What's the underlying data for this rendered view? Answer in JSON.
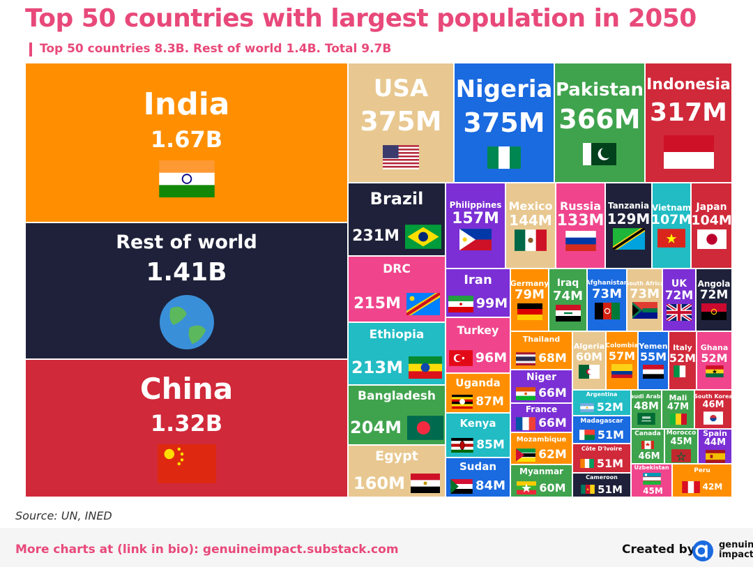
{
  "title": "Top 50 countries with largest population in 2050",
  "subtitle": "Top 50 countries 8.3B. Rest of world 1.4B. Total 9.7B",
  "source": "Source: UN, INED",
  "footer": {
    "link_text": "More charts at (link in bio): genuineimpact.substack.com",
    "created_by": "Created by",
    "brand_line1": "genuine",
    "brand_line2": "impact"
  },
  "colors": {
    "accent": "#e8497a",
    "orange": "#ff8f00",
    "navy": "#1e2139",
    "red": "#d0293a",
    "tan": "#e8c890",
    "blue": "#1a6ae0",
    "green": "#3fa34d",
    "purple": "#7b2fd4",
    "pink": "#f0458c",
    "teal": "#21bcc4"
  },
  "chart_data": {
    "type": "treemap",
    "title": "Top 50 countries with largest population in 2050",
    "subtitle": "Top 50 countries 8.3B. Rest of world 1.4B. Total 9.7B",
    "unit": "people",
    "items": [
      {
        "name": "India",
        "label": "1.67B",
        "value": 1670000000,
        "color": "#ff8f00",
        "flag": "in"
      },
      {
        "name": "Rest of world",
        "label": "1.41B",
        "value": 1410000000,
        "color": "#1e2139",
        "flag": "globe"
      },
      {
        "name": "China",
        "label": "1.32B",
        "value": 1320000000,
        "color": "#d0293a",
        "flag": "cn"
      },
      {
        "name": "USA",
        "label": "375M",
        "value": 375000000,
        "color": "#e8c890",
        "flag": "us"
      },
      {
        "name": "Nigeria",
        "label": "375M",
        "value": 375000000,
        "color": "#1a6ae0",
        "flag": "ng"
      },
      {
        "name": "Pakistan",
        "label": "366M",
        "value": 366000000,
        "color": "#3fa34d",
        "flag": "pk"
      },
      {
        "name": "Indonesia",
        "label": "317M",
        "value": 317000000,
        "color": "#d0293a",
        "flag": "id"
      },
      {
        "name": "Brazil",
        "label": "231M",
        "value": 231000000,
        "color": "#1e2139",
        "flag": "br"
      },
      {
        "name": "DRC",
        "label": "215M",
        "value": 215000000,
        "color": "#f0458c",
        "flag": "cd"
      },
      {
        "name": "Ethiopia",
        "label": "213M",
        "value": 213000000,
        "color": "#21bcc4",
        "flag": "et"
      },
      {
        "name": "Bangladesh",
        "label": "204M",
        "value": 204000000,
        "color": "#3fa34d",
        "flag": "bd"
      },
      {
        "name": "Egypt",
        "label": "160M",
        "value": 160000000,
        "color": "#e8c890",
        "flag": "eg"
      },
      {
        "name": "Philippines",
        "label": "157M",
        "value": 157000000,
        "color": "#7b2fd4",
        "flag": "ph"
      },
      {
        "name": "Mexico",
        "label": "144M",
        "value": 144000000,
        "color": "#e8c890",
        "flag": "mx"
      },
      {
        "name": "Russia",
        "label": "133M",
        "value": 133000000,
        "color": "#f0458c",
        "flag": "ru"
      },
      {
        "name": "Tanzania",
        "label": "129M",
        "value": 129000000,
        "color": "#1e2139",
        "flag": "tz"
      },
      {
        "name": "Vietnam",
        "label": "107M",
        "value": 107000000,
        "color": "#21bcc4",
        "flag": "vn"
      },
      {
        "name": "Japan",
        "label": "104M",
        "value": 104000000,
        "color": "#d0293a",
        "flag": "jp"
      },
      {
        "name": "Iran",
        "label": "99M",
        "value": 99000000,
        "color": "#7b2fd4",
        "flag": "ir"
      },
      {
        "name": "Turkey",
        "label": "96M",
        "value": 96000000,
        "color": "#f0458c",
        "flag": "tr"
      },
      {
        "name": "Germany",
        "label": "79M",
        "value": 79000000,
        "color": "#ff8f00",
        "flag": "de"
      },
      {
        "name": "Iraq",
        "label": "74M",
        "value": 74000000,
        "color": "#3fa34d",
        "flag": "iq"
      },
      {
        "name": "Afghanistan",
        "label": "73M",
        "value": 73000000,
        "color": "#1a6ae0",
        "flag": "af"
      },
      {
        "name": "South Africa",
        "label": "73M",
        "value": 73000000,
        "color": "#e8c890",
        "flag": "za"
      },
      {
        "name": "UK",
        "label": "72M",
        "value": 72000000,
        "color": "#7b2fd4",
        "flag": "gb"
      },
      {
        "name": "Angola",
        "label": "72M",
        "value": 72000000,
        "color": "#1e2139",
        "flag": "ao"
      },
      {
        "name": "Thailand",
        "label": "68M",
        "value": 68000000,
        "color": "#ff8f00",
        "flag": "th"
      },
      {
        "name": "Uganda",
        "label": "87M",
        "value": 87000000,
        "color": "#ff8f00",
        "flag": "ug"
      },
      {
        "name": "Kenya",
        "label": "85M",
        "value": 85000000,
        "color": "#21bcc4",
        "flag": "ke"
      },
      {
        "name": "Sudan",
        "label": "84M",
        "value": 84000000,
        "color": "#1a6ae0",
        "flag": "sd"
      },
      {
        "name": "Niger",
        "label": "66M",
        "value": 66000000,
        "color": "#7b2fd4",
        "flag": "ne"
      },
      {
        "name": "France",
        "label": "66M",
        "value": 66000000,
        "color": "#7b2fd4",
        "flag": "fr"
      },
      {
        "name": "Mozambique",
        "label": "62M",
        "value": 62000000,
        "color": "#ff8f00",
        "flag": "mz"
      },
      {
        "name": "Myanmar",
        "label": "60M",
        "value": 60000000,
        "color": "#3fa34d",
        "flag": "mm"
      },
      {
        "name": "Algeria",
        "label": "60M",
        "value": 60000000,
        "color": "#e8c890",
        "flag": "dz"
      },
      {
        "name": "Colombia",
        "label": "57M",
        "value": 57000000,
        "color": "#ff8f00",
        "flag": "co"
      },
      {
        "name": "Yemen",
        "label": "55M",
        "value": 55000000,
        "color": "#1a6ae0",
        "flag": "ye"
      },
      {
        "name": "Italy",
        "label": "52M",
        "value": 52000000,
        "color": "#d0293a",
        "flag": "it"
      },
      {
        "name": "Ghana",
        "label": "52M",
        "value": 52000000,
        "color": "#f0458c",
        "flag": "gh"
      },
      {
        "name": "Argentina",
        "label": "52M",
        "value": 52000000,
        "color": "#21bcc4",
        "flag": "ar"
      },
      {
        "name": "Saudi Arabia",
        "label": "48M",
        "value": 48000000,
        "color": "#3fa34d",
        "flag": "sa"
      },
      {
        "name": "Mali",
        "label": "47M",
        "value": 47000000,
        "color": "#3fa34d",
        "flag": "ml"
      },
      {
        "name": "South Korea",
        "label": "46M",
        "value": 46000000,
        "color": "#d0293a",
        "flag": "kr"
      },
      {
        "name": "Madagascar",
        "label": "51M",
        "value": 51000000,
        "color": "#1a6ae0",
        "flag": "mg"
      },
      {
        "name": "Canada",
        "label": "46M",
        "value": 46000000,
        "color": "#3fa34d",
        "flag": "ca"
      },
      {
        "name": "Morocco",
        "label": "45M",
        "value": 45000000,
        "color": "#3fa34d",
        "flag": "ma"
      },
      {
        "name": "Spain",
        "label": "44M",
        "value": 44000000,
        "color": "#7b2fd4",
        "flag": "es"
      },
      {
        "name": "Côte D'Ivoire",
        "label": "51M",
        "value": 51000000,
        "color": "#d0293a",
        "flag": "ci"
      },
      {
        "name": "Uzbekistan",
        "label": "45M",
        "value": 45000000,
        "color": "#f0458c",
        "flag": "uz"
      },
      {
        "name": "Cameroon",
        "label": "51M",
        "value": 51000000,
        "color": "#1e2139",
        "flag": "cm"
      },
      {
        "name": "Peru",
        "label": "42M",
        "value": 42000000,
        "color": "#ff8f00",
        "flag": "pe"
      }
    ]
  }
}
